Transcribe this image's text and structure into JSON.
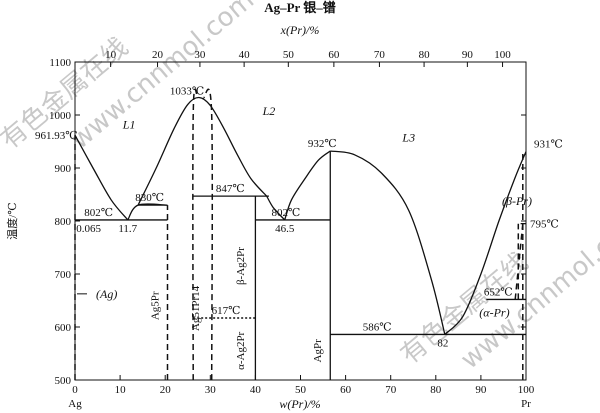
{
  "title": "Ag–Pr  银–镨",
  "watermark": [
    "有色金属在线",
    "www.cnnmol.com"
  ],
  "chart_data": {
    "type": "line",
    "title": "Ag–Pr  银–镨",
    "xlabel": "w(Pr)/%",
    "x2label": "x(Pr)/%",
    "ylabel": "温度/℃",
    "xlim": [
      0,
      100
    ],
    "ylim": [
      500,
      1100
    ],
    "x_ticks": [
      0,
      10,
      20,
      30,
      40,
      50,
      60,
      70,
      80,
      90,
      100
    ],
    "x2_ticks": [
      10,
      20,
      30,
      40,
      50,
      60,
      70,
      80,
      90,
      100
    ],
    "x2_tick_positions_wpr": [
      7.9,
      18.3,
      27.7,
      37.5,
      47.3,
      57.4,
      67.5,
      77.4,
      87.0,
      94.8
    ],
    "y_ticks": [
      500,
      600,
      700,
      800,
      900,
      1000,
      1100
    ],
    "end_labels": {
      "left": "Ag",
      "right": "Pr"
    },
    "solid_curves": [
      {
        "name": "liquidus-ag",
        "x": [
          0,
          4,
          8,
          11.7
        ],
        "y": [
          961.93,
          900,
          840,
          802
        ]
      },
      {
        "name": "liquidus-ag-pr-dome",
        "x": [
          14,
          18,
          22,
          25,
          27.5,
          30,
          33,
          36,
          39,
          42.5
        ],
        "y": [
          830,
          900,
          975,
          1020,
          1033,
          1018,
          975,
          925,
          880,
          847
        ]
      },
      {
        "name": "liquidus-to-eutectic-46",
        "x": [
          42.5,
          44,
          46.5
        ],
        "y": [
          847,
          825,
          802
        ]
      },
      {
        "name": "liquidus-agpr-rise",
        "x": [
          46.5,
          48,
          51,
          54,
          56.6
        ],
        "y": [
          802,
          840,
          880,
          915,
          932
        ]
      },
      {
        "name": "liquidus-agpr-fall",
        "x": [
          56.6,
          62,
          68,
          74,
          79,
          82
        ],
        "y": [
          932,
          925,
          890,
          820,
          690,
          586
        ]
      },
      {
        "name": "liquidus-pr-rise",
        "x": [
          82,
          86,
          90,
          94,
          97.5,
          100
        ],
        "y": [
          586,
          620,
          700,
          800,
          880,
          931
        ]
      },
      {
        "name": "peritectic-830-step",
        "x": [
          11.7,
          14,
          20.5
        ],
        "y": [
          802,
          830,
          830
        ]
      }
    ],
    "dashed_curves": [
      {
        "name": "ag-solvus",
        "x": [
          0,
          0
        ],
        "y": [
          500,
          961.93
        ]
      },
      {
        "name": "ag2pr-left",
        "x": [
          26.2,
          26.2,
          27.2
        ],
        "y": [
          500,
          1000,
          1033
        ]
      },
      {
        "name": "ag2pr-right",
        "x": [
          30.3,
          30.3,
          28.5
        ],
        "y": [
          500,
          1000,
          1033
        ]
      },
      {
        "name": "ag51pr14-left",
        "x": [
          20.5,
          20.5
        ],
        "y": [
          500,
          830
        ]
      },
      {
        "name": "pr-solvus-1",
        "x": [
          99.3,
          99.3
        ],
        "y": [
          500,
          931
        ]
      },
      {
        "name": "beta-alpha-boundary",
        "x": [
          97.6,
          99.3
        ],
        "y": [
          652,
          795
        ]
      },
      {
        "name": "pr-solvus-2",
        "x": [
          98.3,
          98.3
        ],
        "y": [
          652,
          795
        ]
      }
    ],
    "isotherms": [
      {
        "temp": 802,
        "x": [
          0,
          20.5
        ],
        "style": "solid"
      },
      {
        "temp": 830,
        "x": [
          14,
          20.5
        ],
        "style": "solid"
      },
      {
        "temp": 847,
        "x": [
          26.2,
          43
        ],
        "style": "solid"
      },
      {
        "temp": 802,
        "x": [
          40,
          56.6
        ],
        "style": "solid"
      },
      {
        "temp": 586,
        "x": [
          56.6,
          100
        ],
        "style": "solid"
      },
      {
        "temp": 652,
        "x": [
          91.2,
          100
        ],
        "style": "solid"
      },
      {
        "temp": 795,
        "x": [
          98.8,
          100
        ],
        "style": "solid"
      },
      {
        "temp": 617,
        "x": [
          26.2,
          40
        ],
        "style": "dotted"
      }
    ],
    "compound_lines": [
      {
        "name": "AgPr",
        "x": 56.6,
        "top": 932,
        "style": "solid"
      },
      {
        "name": "Ag2Pr-beta-alpha",
        "x": 40,
        "top": 847,
        "style": "solid"
      }
    ],
    "annotations": [
      {
        "text": "961.93℃",
        "x": 0,
        "y": 961.93
      },
      {
        "text": "1033℃",
        "x": 27.5,
        "y": 1033
      },
      {
        "text": "932℃",
        "x": 56.6,
        "y": 932
      },
      {
        "text": "931℃",
        "x": 100,
        "y": 931
      },
      {
        "text": "830℃",
        "x": 17,
        "y": 830
      },
      {
        "text": "847℃",
        "x": 34,
        "y": 847
      },
      {
        "text": "802℃",
        "x": 2.5,
        "y": 802
      },
      {
        "text": "802℃",
        "x": 44,
        "y": 802
      },
      {
        "text": "0.065",
        "x": 0.5,
        "y": 802
      },
      {
        "text": "11.7",
        "x": 11.7,
        "y": 802
      },
      {
        "text": "46.5",
        "x": 46.5,
        "y": 802
      },
      {
        "text": "795℃",
        "x": 100,
        "y": 795
      },
      {
        "text": "652℃",
        "x": 92,
        "y": 652
      },
      {
        "text": "617℃",
        "x": 33.5,
        "y": 617
      },
      {
        "text": "586℃",
        "x": 67,
        "y": 586
      },
      {
        "text": "82",
        "x": 82,
        "y": 586
      }
    ],
    "phase_labels": [
      {
        "text": "L1",
        "x": 12,
        "y": 975
      },
      {
        "text": "L2",
        "x": 43,
        "y": 1000
      },
      {
        "text": "L3",
        "x": 74,
        "y": 950
      },
      {
        "text": "(β-Pr)",
        "x": 98,
        "y": 830
      },
      {
        "text": "(α-Pr)",
        "x": 93,
        "y": 620
      },
      {
        "text": "(Ag)",
        "x": 2,
        "y": 655
      }
    ],
    "vertical_labels": [
      {
        "text": "Ag51Pr14",
        "x": 27.5,
        "y": 635
      },
      {
        "text": "Ag5Pr",
        "x": 18.5,
        "y": 640
      },
      {
        "text": "β-Ag2Pr",
        "x": 37.5,
        "y": 715
      },
      {
        "text": "α-Ag2Pr",
        "x": 37.5,
        "y": 555
      },
      {
        "text": "AgPr",
        "x": 54.5,
        "y": 555
      }
    ]
  }
}
